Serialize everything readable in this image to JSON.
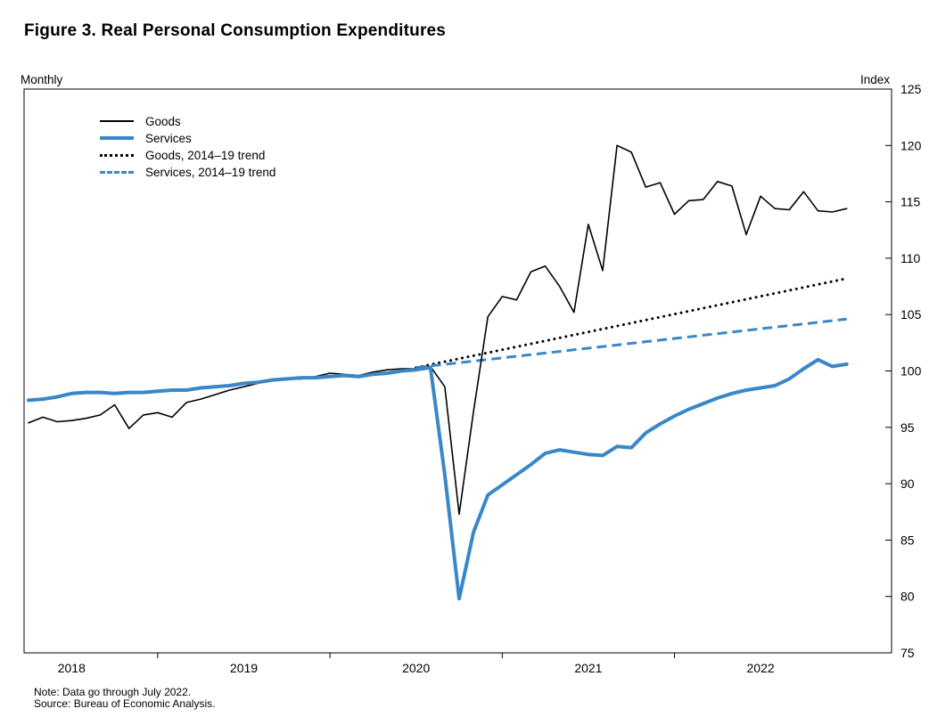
{
  "figure": {
    "title": "Figure 3. Real Personal Consumption Expenditures"
  },
  "axes_captions": {
    "left": "Monthly",
    "right": "Index"
  },
  "notes": {
    "note": "Note: Data go through July 2022.",
    "source": "Source: Bureau of Economic Analysis."
  },
  "chart_data": {
    "type": "line",
    "title": "Figure 3. Real Personal Consumption Expenditures",
    "frequency_label": "Monthly",
    "ylabel": "Index",
    "grid": false,
    "legend_position": "top-left-inside",
    "colors": {
      "goods": "#000000",
      "services": "#3a87c8"
    },
    "y_axis": {
      "min": 75,
      "max": 125,
      "ticks": [
        125,
        120,
        115,
        110,
        105,
        100,
        95,
        90,
        85,
        80,
        75
      ],
      "side": "right"
    },
    "x_axis": {
      "start": "2017-10",
      "end": "2022-07",
      "months": [
        "2017-10",
        "2017-11",
        "2017-12",
        "2018-01",
        "2018-02",
        "2018-03",
        "2018-04",
        "2018-05",
        "2018-06",
        "2018-07",
        "2018-08",
        "2018-09",
        "2018-10",
        "2018-11",
        "2018-12",
        "2019-01",
        "2019-02",
        "2019-03",
        "2019-04",
        "2019-05",
        "2019-06",
        "2019-07",
        "2019-08",
        "2019-09",
        "2019-10",
        "2019-11",
        "2019-12",
        "2020-01",
        "2020-02",
        "2020-03",
        "2020-04",
        "2020-05",
        "2020-06",
        "2020-07",
        "2020-08",
        "2020-09",
        "2020-10",
        "2020-11",
        "2020-12",
        "2021-01",
        "2021-02",
        "2021-03",
        "2021-04",
        "2021-05",
        "2021-06",
        "2021-07",
        "2021-08",
        "2021-09",
        "2021-10",
        "2021-11",
        "2021-12",
        "2022-01",
        "2022-02",
        "2022-03",
        "2022-04",
        "2022-05",
        "2022-06",
        "2022-07"
      ],
      "year_labels": [
        {
          "label": "2018",
          "month_index": 3
        },
        {
          "label": "2019",
          "month_index": 15
        },
        {
          "label": "2020",
          "month_index": 27
        },
        {
          "label": "2021",
          "month_index": 39
        },
        {
          "label": "2022",
          "month_index": 51
        }
      ],
      "minor_tick_month_indices": [
        9,
        21,
        33,
        45
      ]
    },
    "legend": [
      {
        "label": "Goods"
      },
      {
        "label": "Services"
      },
      {
        "label": "Goods, 2014–19 trend"
      },
      {
        "label": "Services, 2014–19 trend"
      }
    ],
    "series": [
      {
        "id": "goods",
        "name": "Goods",
        "color": "#000000",
        "width": 1.6,
        "values": [
          95.4,
          95.9,
          95.5,
          95.6,
          95.8,
          96.1,
          97.0,
          94.9,
          96.1,
          96.3,
          95.9,
          97.2,
          97.5,
          97.9,
          98.3,
          98.6,
          98.9,
          99.2,
          99.3,
          99.3,
          99.5,
          99.8,
          99.7,
          99.6,
          99.9,
          100.1,
          100.2,
          100.2,
          100.4,
          98.6,
          87.3,
          96.4,
          104.8,
          106.6,
          106.3,
          108.8,
          109.3,
          107.5,
          105.2,
          113.0,
          108.9,
          120.0,
          119.4,
          116.3,
          116.7,
          113.9,
          115.1,
          115.2,
          116.8,
          116.4,
          112.1,
          115.5,
          114.4,
          114.3,
          115.9,
          114.2,
          114.1,
          114.4
        ]
      },
      {
        "id": "services",
        "name": "Services",
        "color": "#3a87c8",
        "width": 4,
        "values": [
          97.4,
          97.5,
          97.7,
          98.0,
          98.1,
          98.1,
          98.0,
          98.1,
          98.1,
          98.2,
          98.3,
          98.3,
          98.5,
          98.6,
          98.7,
          98.9,
          99.0,
          99.2,
          99.3,
          99.4,
          99.4,
          99.5,
          99.6,
          99.5,
          99.7,
          99.8,
          100.0,
          100.1,
          100.3,
          90.8,
          79.8,
          85.7,
          89.0,
          89.9,
          90.8,
          91.7,
          92.7,
          93.0,
          92.8,
          92.6,
          92.5,
          93.3,
          93.2,
          94.5,
          95.3,
          96.0,
          96.6,
          97.1,
          97.6,
          98.0,
          98.3,
          98.5,
          98.7,
          99.3,
          100.2,
          101.0,
          100.4,
          100.6
        ]
      }
    ],
    "trends": [
      {
        "id": "goods-trend",
        "name": "Goods, 2014–19 trend",
        "color": "#000000",
        "width": 3,
        "style": "dotted",
        "dash": "0.1 6.5",
        "start_month": "2020-01",
        "start_index": 27,
        "start_value": 100.3,
        "end_month": "2022-07",
        "end_index": 57,
        "end_value": 108.2
      },
      {
        "id": "services-trend",
        "name": "Services, 2014–19 trend",
        "color": "#3a87c8",
        "width": 3,
        "style": "dashed",
        "dash": "11 6",
        "start_month": "2020-01",
        "start_index": 27,
        "start_value": 100.3,
        "end_month": "2022-07",
        "end_index": 57,
        "end_value": 104.6
      }
    ]
  }
}
